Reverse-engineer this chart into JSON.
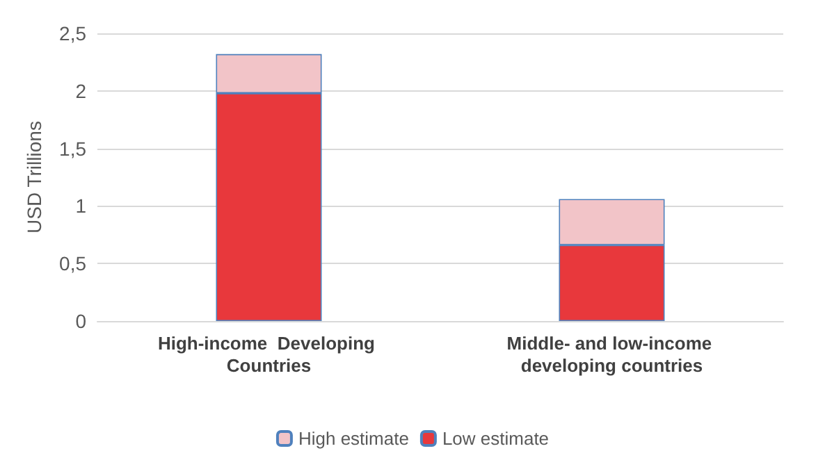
{
  "chart_data": {
    "type": "bar",
    "ylabel": "USD Trillions",
    "categories": [
      "High-income  Developing Countries",
      "Middle- and low-income developing countries"
    ],
    "series": [
      {
        "name": "Low estimate",
        "color": "#e8383c",
        "values": [
          1.98,
          0.66
        ]
      },
      {
        "name": "High estimate",
        "color": "#f2c4c8",
        "values": [
          0.34,
          0.4
        ]
      }
    ],
    "stacked": true,
    "ylim": [
      0,
      2.5
    ],
    "yticks": [
      {
        "value": 0,
        "label": "0"
      },
      {
        "value": 0.5,
        "label": "0,5"
      },
      {
        "value": 1,
        "label": "1"
      },
      {
        "value": 1.5,
        "label": "1,5"
      },
      {
        "value": 2,
        "label": "2"
      },
      {
        "value": 2.5,
        "label": "2,5"
      }
    ],
    "grid": "y",
    "legend": "bottom"
  }
}
